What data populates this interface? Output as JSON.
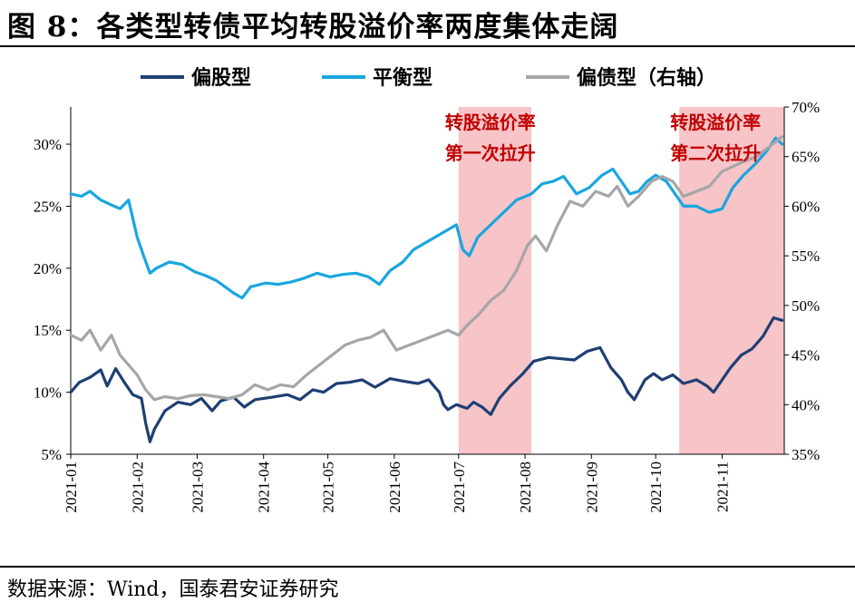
{
  "figure": {
    "title": "图 8：各类型转债平均转股溢价率两度集体走阔",
    "source": "数据来源：Wind，国泰君安证券研究"
  },
  "colors": {
    "series_dark": "#1f3f73",
    "series_light": "#19a6df",
    "series_gray": "#a6a6a6",
    "shade": "#f7c4c8"
  },
  "chart_data": {
    "type": "line",
    "x_axis": {
      "type": "date",
      "ticks": [
        "2021-01",
        "2021-02",
        "2021-03",
        "2021-04",
        "2021-05",
        "2021-06",
        "2021-07",
        "2021-08",
        "2021-09",
        "2021-10",
        "2021-11"
      ],
      "range": [
        "2021-01-01",
        "2021-11-30"
      ]
    },
    "y_left": {
      "ticks": [
        "5%",
        "10%",
        "15%",
        "20%",
        "25%",
        "30%"
      ],
      "range": [
        5,
        33
      ]
    },
    "y_right": {
      "ticks": [
        "35%",
        "40%",
        "45%",
        "50%",
        "55%",
        "60%",
        "65%",
        "70%"
      ],
      "range": [
        35,
        70
      ]
    },
    "legend": {
      "placement": "top"
    },
    "annotations": [
      {
        "line1": "转股溢价率",
        "line2": "第一次拉升",
        "span": [
          "2021-07-01",
          "2021-08-04"
        ]
      },
      {
        "line1": "转股溢价率",
        "line2": "第二次拉升",
        "span": [
          "2021-10-12",
          "2021-11-30"
        ]
      }
    ],
    "series": [
      {
        "name": "偏股型",
        "axis": "left",
        "color_key": "series_dark",
        "points": [
          [
            "2021-01-01",
            10.0
          ],
          [
            "2021-01-05",
            10.8
          ],
          [
            "2021-01-10",
            11.2
          ],
          [
            "2021-01-15",
            11.8
          ],
          [
            "2021-01-18",
            10.5
          ],
          [
            "2021-01-22",
            11.9
          ],
          [
            "2021-01-26",
            10.8
          ],
          [
            "2021-01-30",
            9.8
          ],
          [
            "2021-02-03",
            9.5
          ],
          [
            "2021-02-05",
            7.5
          ],
          [
            "2021-02-07",
            6.0
          ],
          [
            "2021-02-09",
            7.0
          ],
          [
            "2021-02-14",
            8.5
          ],
          [
            "2021-02-20",
            9.2
          ],
          [
            "2021-02-26",
            9.0
          ],
          [
            "2021-03-03",
            9.5
          ],
          [
            "2021-03-08",
            8.5
          ],
          [
            "2021-03-12",
            9.3
          ],
          [
            "2021-03-18",
            9.6
          ],
          [
            "2021-03-23",
            8.8
          ],
          [
            "2021-03-28",
            9.4
          ],
          [
            "2021-04-05",
            9.6
          ],
          [
            "2021-04-12",
            9.8
          ],
          [
            "2021-04-18",
            9.4
          ],
          [
            "2021-04-24",
            10.2
          ],
          [
            "2021-04-29",
            10.0
          ],
          [
            "2021-05-05",
            10.7
          ],
          [
            "2021-05-11",
            10.8
          ],
          [
            "2021-05-17",
            11.0
          ],
          [
            "2021-05-23",
            10.4
          ],
          [
            "2021-05-30",
            11.1
          ],
          [
            "2021-06-05",
            10.9
          ],
          [
            "2021-06-12",
            10.7
          ],
          [
            "2021-06-17",
            11.0
          ],
          [
            "2021-06-22",
            10.0
          ],
          [
            "2021-06-24",
            9.0
          ],
          [
            "2021-06-26",
            8.6
          ],
          [
            "2021-06-30",
            9.0
          ],
          [
            "2021-07-05",
            8.7
          ],
          [
            "2021-07-08",
            9.2
          ],
          [
            "2021-07-12",
            8.8
          ],
          [
            "2021-07-16",
            8.2
          ],
          [
            "2021-07-20",
            9.5
          ],
          [
            "2021-07-25",
            10.5
          ],
          [
            "2021-07-31",
            11.5
          ],
          [
            "2021-08-05",
            12.5
          ],
          [
            "2021-08-12",
            12.8
          ],
          [
            "2021-08-18",
            12.7
          ],
          [
            "2021-08-24",
            12.6
          ],
          [
            "2021-08-30",
            13.3
          ],
          [
            "2021-09-05",
            13.6
          ],
          [
            "2021-09-10",
            12.0
          ],
          [
            "2021-09-15",
            11.0
          ],
          [
            "2021-09-18",
            10.0
          ],
          [
            "2021-09-21",
            9.4
          ],
          [
            "2021-09-26",
            11.0
          ],
          [
            "2021-09-30",
            11.5
          ],
          [
            "2021-10-04",
            11.0
          ],
          [
            "2021-10-09",
            11.4
          ],
          [
            "2021-10-14",
            10.7
          ],
          [
            "2021-10-20",
            11.0
          ],
          [
            "2021-10-25",
            10.5
          ],
          [
            "2021-10-28",
            10.0
          ],
          [
            "2021-11-01",
            11.0
          ],
          [
            "2021-11-05",
            12.0
          ],
          [
            "2021-11-10",
            13.0
          ],
          [
            "2021-11-15",
            13.5
          ],
          [
            "2021-11-20",
            14.5
          ],
          [
            "2021-11-25",
            16.0
          ],
          [
            "2021-11-29",
            15.8
          ]
        ]
      },
      {
        "name": "平衡型",
        "axis": "left",
        "color_key": "series_light",
        "points": [
          [
            "2021-01-01",
            26.0
          ],
          [
            "2021-01-06",
            25.8
          ],
          [
            "2021-01-10",
            26.2
          ],
          [
            "2021-01-15",
            25.5
          ],
          [
            "2021-01-20",
            25.1
          ],
          [
            "2021-01-24",
            24.8
          ],
          [
            "2021-01-28",
            25.5
          ],
          [
            "2021-02-01",
            22.5
          ],
          [
            "2021-02-04",
            21.0
          ],
          [
            "2021-02-07",
            19.6
          ],
          [
            "2021-02-10",
            20.0
          ],
          [
            "2021-02-16",
            20.5
          ],
          [
            "2021-02-22",
            20.3
          ],
          [
            "2021-02-28",
            19.7
          ],
          [
            "2021-03-05",
            19.4
          ],
          [
            "2021-03-10",
            19.0
          ],
          [
            "2021-03-14",
            18.5
          ],
          [
            "2021-03-18",
            18.0
          ],
          [
            "2021-03-22",
            17.6
          ],
          [
            "2021-03-26",
            18.5
          ],
          [
            "2021-04-02",
            18.8
          ],
          [
            "2021-04-08",
            18.7
          ],
          [
            "2021-04-14",
            18.9
          ],
          [
            "2021-04-20",
            19.2
          ],
          [
            "2021-04-26",
            19.6
          ],
          [
            "2021-05-02",
            19.3
          ],
          [
            "2021-05-08",
            19.5
          ],
          [
            "2021-05-14",
            19.6
          ],
          [
            "2021-05-20",
            19.3
          ],
          [
            "2021-05-25",
            18.7
          ],
          [
            "2021-05-30",
            19.8
          ],
          [
            "2021-06-05",
            20.5
          ],
          [
            "2021-06-10",
            21.5
          ],
          [
            "2021-06-15",
            22.0
          ],
          [
            "2021-06-20",
            22.5
          ],
          [
            "2021-06-25",
            23.0
          ],
          [
            "2021-06-30",
            23.5
          ],
          [
            "2021-07-03",
            21.5
          ],
          [
            "2021-07-06",
            21.0
          ],
          [
            "2021-07-10",
            22.5
          ],
          [
            "2021-07-16",
            23.5
          ],
          [
            "2021-07-22",
            24.5
          ],
          [
            "2021-07-28",
            25.5
          ],
          [
            "2021-08-04",
            26.0
          ],
          [
            "2021-08-09",
            26.8
          ],
          [
            "2021-08-14",
            27.0
          ],
          [
            "2021-08-19",
            27.4
          ],
          [
            "2021-08-25",
            26.0
          ],
          [
            "2021-08-31",
            26.5
          ],
          [
            "2021-09-06",
            27.5
          ],
          [
            "2021-09-11",
            28.0
          ],
          [
            "2021-09-15",
            27.0
          ],
          [
            "2021-09-19",
            26.0
          ],
          [
            "2021-09-23",
            26.2
          ],
          [
            "2021-09-27",
            27.0
          ],
          [
            "2021-10-01",
            27.5
          ],
          [
            "2021-10-06",
            27.0
          ],
          [
            "2021-10-10",
            26.0
          ],
          [
            "2021-10-14",
            25.0
          ],
          [
            "2021-10-20",
            25.0
          ],
          [
            "2021-10-26",
            24.5
          ],
          [
            "2021-11-01",
            24.8
          ],
          [
            "2021-11-06",
            26.5
          ],
          [
            "2021-11-11",
            27.5
          ],
          [
            "2021-11-17",
            28.5
          ],
          [
            "2021-11-22",
            29.5
          ],
          [
            "2021-11-26",
            30.5
          ],
          [
            "2021-11-29",
            30.0
          ]
        ]
      },
      {
        "name": "偏债型（右轴）",
        "axis": "right",
        "color_key": "series_gray",
        "points": [
          [
            "2021-01-01",
            47.0
          ],
          [
            "2021-01-06",
            46.5
          ],
          [
            "2021-01-10",
            47.5
          ],
          [
            "2021-01-15",
            45.5
          ],
          [
            "2021-01-20",
            47.0
          ],
          [
            "2021-01-24",
            45.0
          ],
          [
            "2021-01-28",
            44.0
          ],
          [
            "2021-02-01",
            43.0
          ],
          [
            "2021-02-05",
            41.5
          ],
          [
            "2021-02-09",
            40.5
          ],
          [
            "2021-02-14",
            40.8
          ],
          [
            "2021-02-20",
            40.6
          ],
          [
            "2021-02-26",
            40.9
          ],
          [
            "2021-03-04",
            41.0
          ],
          [
            "2021-03-10",
            40.8
          ],
          [
            "2021-03-16",
            40.6
          ],
          [
            "2021-03-22",
            41.0
          ],
          [
            "2021-03-28",
            42.0
          ],
          [
            "2021-04-03",
            41.5
          ],
          [
            "2021-04-09",
            42.0
          ],
          [
            "2021-04-15",
            41.8
          ],
          [
            "2021-04-21",
            43.0
          ],
          [
            "2021-04-27",
            44.0
          ],
          [
            "2021-05-03",
            45.0
          ],
          [
            "2021-05-09",
            46.0
          ],
          [
            "2021-05-15",
            46.5
          ],
          [
            "2021-05-21",
            46.8
          ],
          [
            "2021-05-27",
            47.5
          ],
          [
            "2021-06-02",
            45.5
          ],
          [
            "2021-06-08",
            46.0
          ],
          [
            "2021-06-14",
            46.5
          ],
          [
            "2021-06-20",
            47.0
          ],
          [
            "2021-06-26",
            47.5
          ],
          [
            "2021-07-01",
            47.0
          ],
          [
            "2021-07-05",
            48.0
          ],
          [
            "2021-07-10",
            49.0
          ],
          [
            "2021-07-16",
            50.5
          ],
          [
            "2021-07-22",
            51.5
          ],
          [
            "2021-07-28",
            53.5
          ],
          [
            "2021-08-02",
            56.0
          ],
          [
            "2021-08-06",
            57.0
          ],
          [
            "2021-08-11",
            55.5
          ],
          [
            "2021-08-16",
            58.0
          ],
          [
            "2021-08-22",
            60.5
          ],
          [
            "2021-08-28",
            60.0
          ],
          [
            "2021-09-03",
            61.5
          ],
          [
            "2021-09-09",
            61.0
          ],
          [
            "2021-09-13",
            62.0
          ],
          [
            "2021-09-18",
            60.0
          ],
          [
            "2021-09-23",
            61.0
          ],
          [
            "2021-09-29",
            62.5
          ],
          [
            "2021-10-04",
            63.0
          ],
          [
            "2021-10-09",
            62.5
          ],
          [
            "2021-10-14",
            61.0
          ],
          [
            "2021-10-20",
            61.5
          ],
          [
            "2021-10-26",
            62.0
          ],
          [
            "2021-11-01",
            63.5
          ],
          [
            "2021-11-06",
            64.0
          ],
          [
            "2021-11-11",
            64.5
          ],
          [
            "2021-11-17",
            65.0
          ],
          [
            "2021-11-23",
            66.0
          ],
          [
            "2021-11-29",
            67.0
          ]
        ]
      }
    ]
  }
}
